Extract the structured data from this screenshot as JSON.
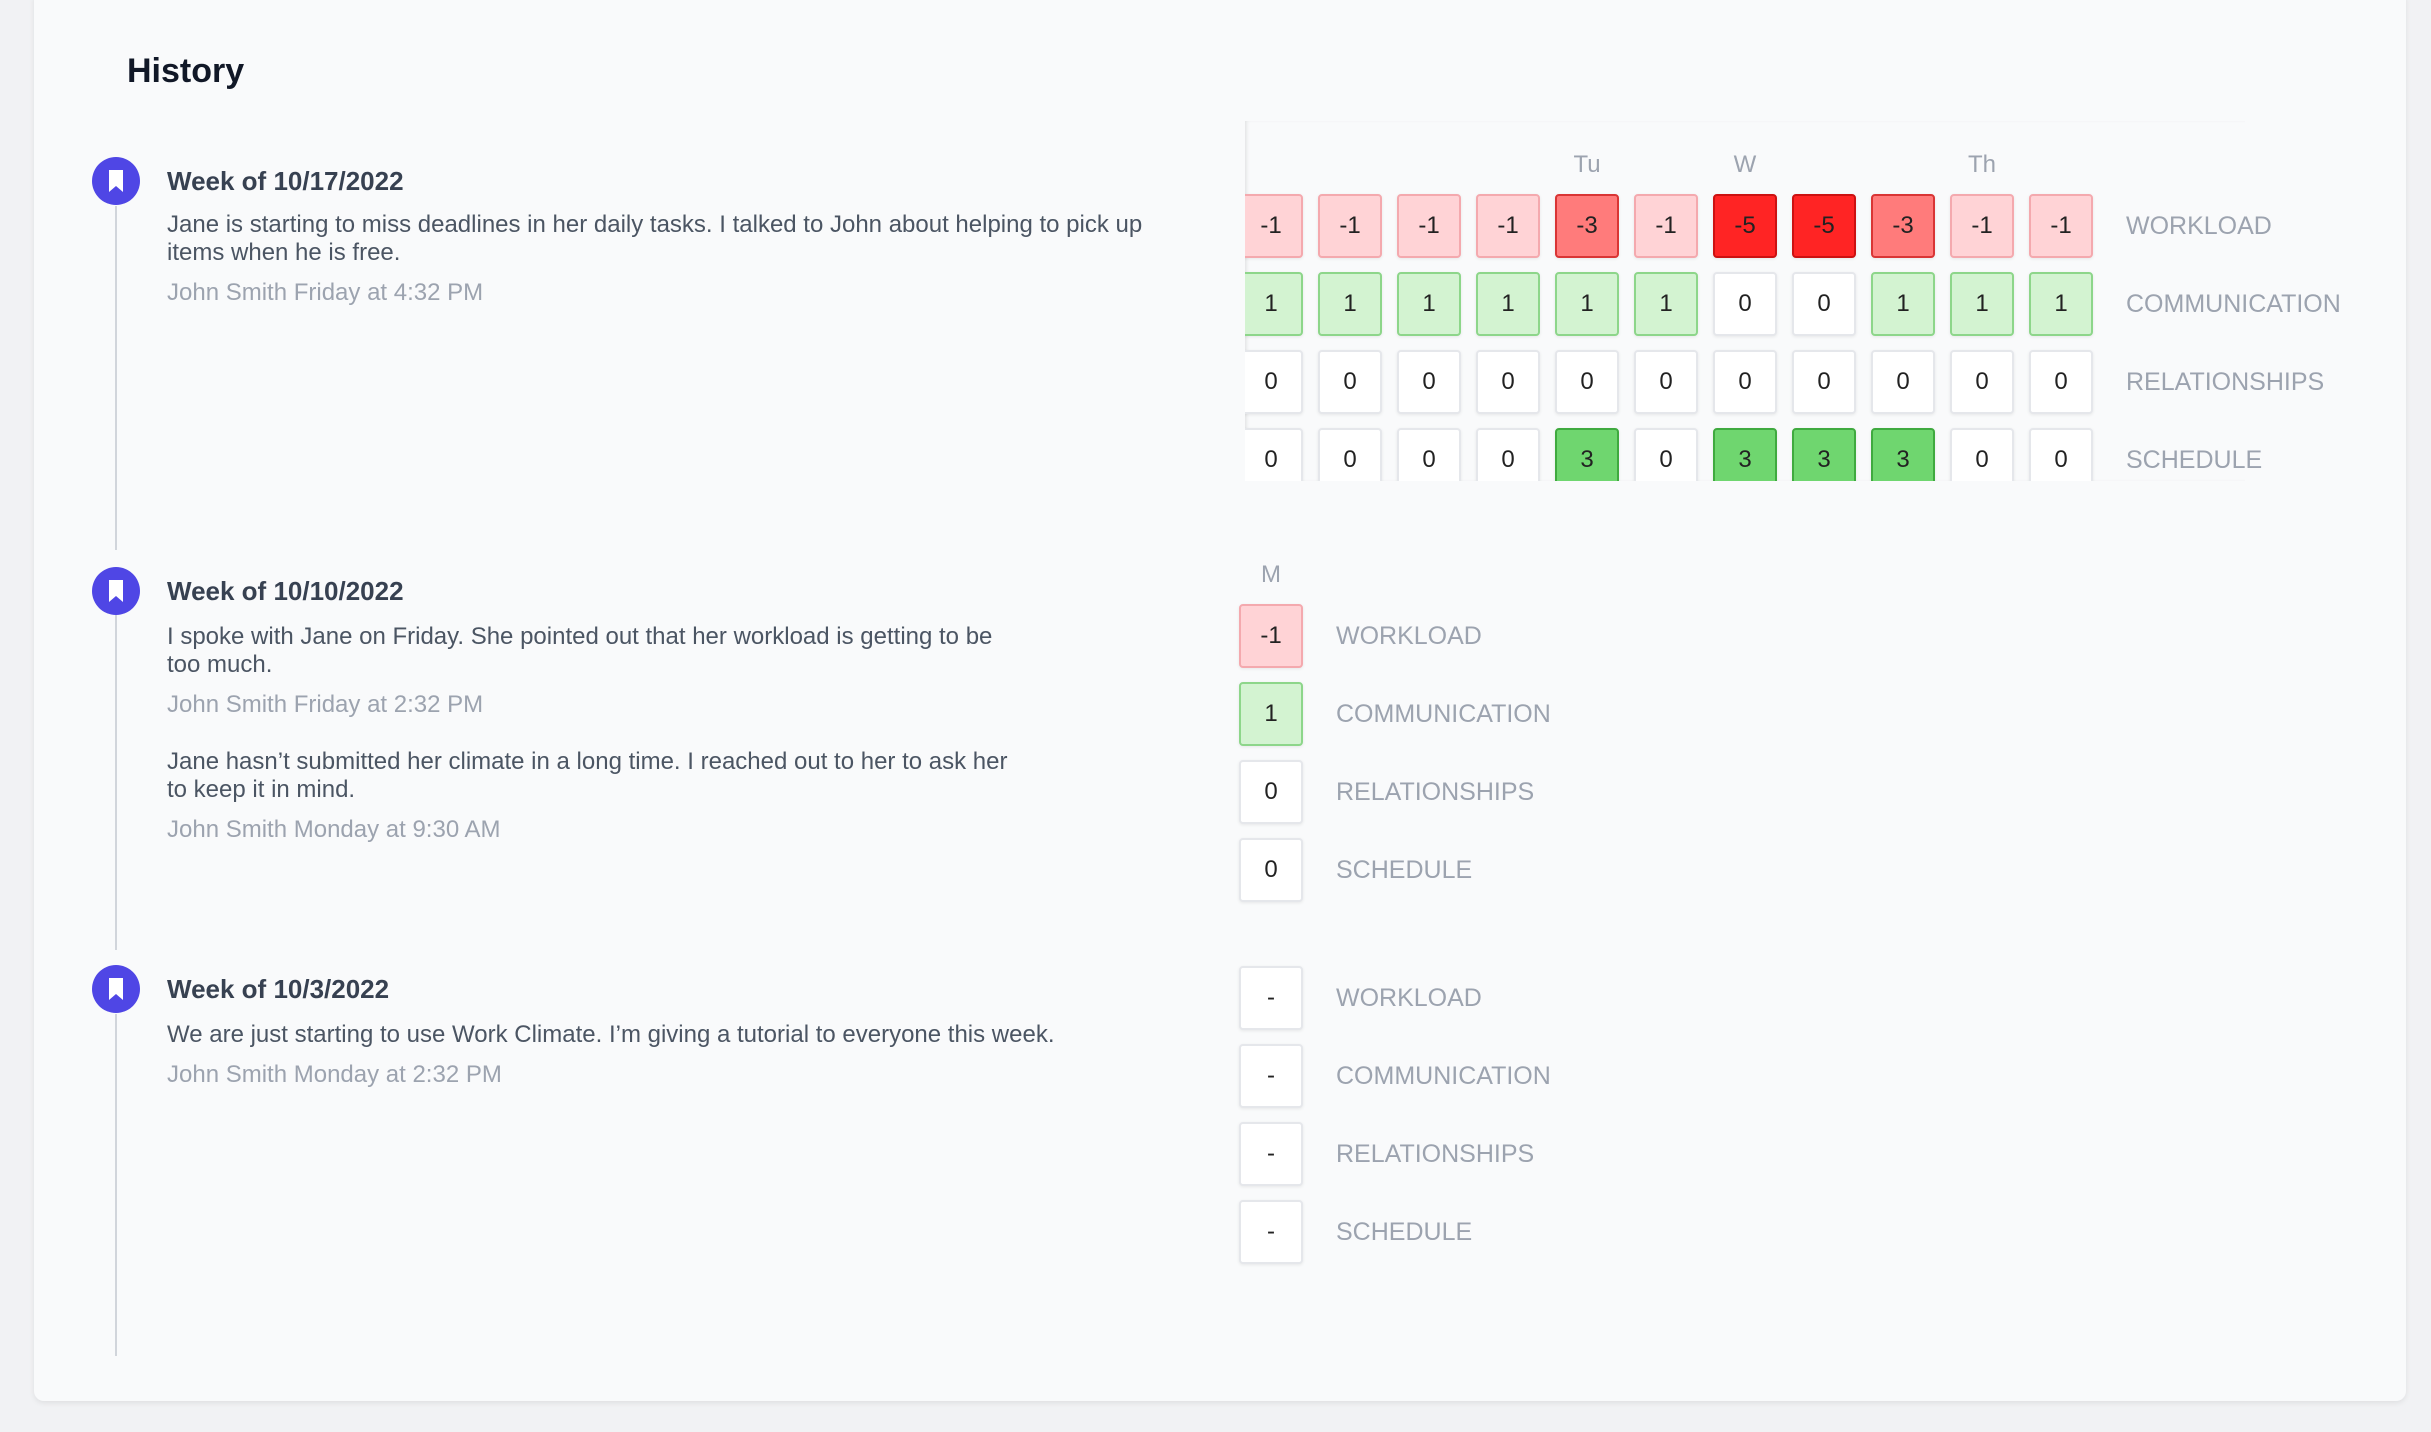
{
  "title": "History",
  "weeks": [
    {
      "title": "Week of 10/17/2022",
      "notes": [
        {
          "text": "Jane is starting to miss deadlines in her daily tasks. I talked to John about helping to pick up items when he is free.",
          "meta": "John Smith Friday at 4:32 PM"
        }
      ],
      "days": [
        null,
        null,
        null,
        null,
        "Tu",
        null,
        "W",
        null,
        null,
        "Th",
        null
      ],
      "rows": [
        {
          "label": "WORKLOAD",
          "values": [
            -1,
            -1,
            -1,
            -1,
            -3,
            -1,
            -5,
            -5,
            -3,
            -1,
            -1
          ]
        },
        {
          "label": "COMMUNICATION",
          "values": [
            1,
            1,
            1,
            1,
            1,
            1,
            0,
            0,
            1,
            1,
            1
          ]
        },
        {
          "label": "RELATIONSHIPS",
          "values": [
            0,
            0,
            0,
            0,
            0,
            0,
            0,
            0,
            0,
            0,
            0
          ]
        },
        {
          "label": "SCHEDULE",
          "values": [
            0,
            0,
            0,
            0,
            3,
            0,
            3,
            3,
            3,
            0,
            0
          ]
        }
      ]
    },
    {
      "title": "Week of 10/10/2022",
      "notes": [
        {
          "text": "I spoke with Jane on Friday. She pointed out that her workload is getting to be too much.",
          "meta": "John Smith Friday at 2:32 PM"
        },
        {
          "text": "Jane hasn’t submitted her climate in a long time. I reached out to her to ask her to keep it in mind.",
          "meta": "John Smith Monday at 9:30 AM"
        }
      ],
      "days": [
        "M"
      ],
      "rows": [
        {
          "label": "WORKLOAD",
          "values": [
            -1
          ]
        },
        {
          "label": "COMMUNICATION",
          "values": [
            1
          ]
        },
        {
          "label": "RELATIONSHIPS",
          "values": [
            0
          ]
        },
        {
          "label": "SCHEDULE",
          "values": [
            0
          ]
        }
      ]
    },
    {
      "title": "Week of 10/3/2022",
      "notes": [
        {
          "text": "We are just starting to use Work Climate. I’m giving a tutorial to everyone this week.",
          "meta": "John Smith Monday at 2:32 PM"
        }
      ],
      "days": [
        null
      ],
      "rows": [
        {
          "label": "WORKLOAD",
          "values": [
            "-"
          ]
        },
        {
          "label": "COMMUNICATION",
          "values": [
            "-"
          ]
        },
        {
          "label": "RELATIONSHIPS",
          "values": [
            "-"
          ]
        },
        {
          "label": "SCHEDULE",
          "values": [
            "-"
          ]
        }
      ]
    }
  ]
}
